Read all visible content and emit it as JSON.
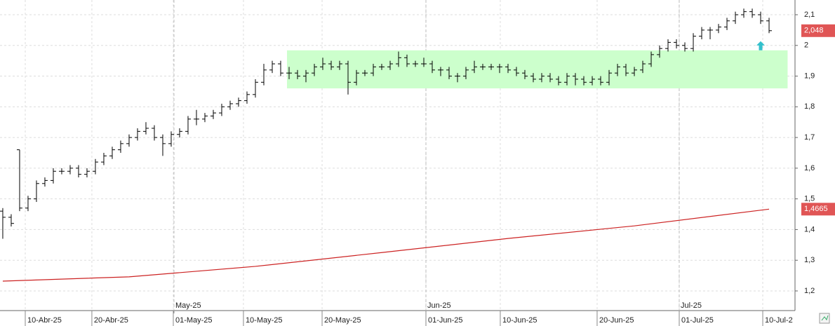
{
  "chart_data": {
    "type": "ohlc",
    "open": [
      1.46,
      1.44,
      1.66,
      1.47,
      1.5,
      1.55,
      1.56,
      1.59,
      1.59,
      1.6,
      1.58,
      1.59,
      1.62,
      1.64,
      1.66,
      1.68,
      1.7,
      1.72,
      1.73,
      1.7,
      1.68,
      1.71,
      1.72,
      1.76,
      1.76,
      1.77,
      1.78,
      1.8,
      1.81,
      1.82,
      1.84,
      1.88,
      1.92,
      1.94,
      1.91,
      1.91,
      1.9,
      1.91,
      1.93,
      1.94,
      1.93,
      1.94,
      1.88,
      1.91,
      1.91,
      1.93,
      1.93,
      1.94,
      1.96,
      1.94,
      1.94,
      1.94,
      1.92,
      1.92,
      1.9,
      1.9,
      1.92,
      1.93,
      1.93,
      1.93,
      1.93,
      1.92,
      1.91,
      1.9,
      1.89,
      1.9,
      1.89,
      1.88,
      1.9,
      1.89,
      1.88,
      1.89,
      1.88,
      1.91,
      1.93,
      1.91,
      1.92,
      1.94,
      1.97,
      1.99,
      2.01,
      2.0,
      1.99,
      2.03,
      2.05,
      2.05,
      2.06,
      2.08,
      2.1,
      2.11,
      2.1,
      2.08
    ],
    "high": [
      1.47,
      1.45,
      1.66,
      1.51,
      1.56,
      1.57,
      1.6,
      1.6,
      1.61,
      1.61,
      1.6,
      1.63,
      1.65,
      1.67,
      1.69,
      1.71,
      1.73,
      1.75,
      1.74,
      1.71,
      1.72,
      1.73,
      1.77,
      1.79,
      1.78,
      1.79,
      1.81,
      1.82,
      1.83,
      1.85,
      1.89,
      1.94,
      1.95,
      1.95,
      1.93,
      1.92,
      1.92,
      1.94,
      1.96,
      1.95,
      1.95,
      1.95,
      1.92,
      1.92,
      1.94,
      1.94,
      1.95,
      1.98,
      1.97,
      1.95,
      1.96,
      1.95,
      1.93,
      1.93,
      1.91,
      1.93,
      1.95,
      1.94,
      1.94,
      1.94,
      1.94,
      1.93,
      1.92,
      1.91,
      1.91,
      1.91,
      1.9,
      1.91,
      1.91,
      1.9,
      1.9,
      1.9,
      1.92,
      1.94,
      1.94,
      1.93,
      1.95,
      1.98,
      2.0,
      2.02,
      2.02,
      2.01,
      2.04,
      2.06,
      2.06,
      2.07,
      2.09,
      2.11,
      2.12,
      2.12,
      2.11,
      2.09
    ],
    "low": [
      1.37,
      1.41,
      1.46,
      1.46,
      1.49,
      1.54,
      1.55,
      1.58,
      1.58,
      1.57,
      1.57,
      1.58,
      1.61,
      1.63,
      1.65,
      1.67,
      1.69,
      1.71,
      1.69,
      1.64,
      1.67,
      1.7,
      1.71,
      1.74,
      1.75,
      1.76,
      1.77,
      1.79,
      1.8,
      1.81,
      1.83,
      1.87,
      1.91,
      1.9,
      1.89,
      1.89,
      1.88,
      1.9,
      1.92,
      1.92,
      1.92,
      1.84,
      1.87,
      1.9,
      1.9,
      1.92,
      1.92,
      1.93,
      1.93,
      1.93,
      1.93,
      1.91,
      1.9,
      1.89,
      1.88,
      1.89,
      1.91,
      1.92,
      1.92,
      1.91,
      1.91,
      1.9,
      1.89,
      1.88,
      1.88,
      1.88,
      1.87,
      1.87,
      1.87,
      1.87,
      1.87,
      1.87,
      1.87,
      1.9,
      1.9,
      1.9,
      1.91,
      1.93,
      1.96,
      1.98,
      1.99,
      1.98,
      1.98,
      2.02,
      2.02,
      2.04,
      2.05,
      2.07,
      2.09,
      2.09,
      2.07,
      2.04
    ],
    "close": [
      1.44,
      1.42,
      1.47,
      1.5,
      1.55,
      1.56,
      1.59,
      1.59,
      1.6,
      1.58,
      1.59,
      1.62,
      1.64,
      1.66,
      1.68,
      1.7,
      1.72,
      1.73,
      1.7,
      1.68,
      1.71,
      1.72,
      1.76,
      1.76,
      1.77,
      1.78,
      1.8,
      1.81,
      1.82,
      1.84,
      1.88,
      1.92,
      1.94,
      1.91,
      1.91,
      1.9,
      1.91,
      1.93,
      1.94,
      1.93,
      1.94,
      1.88,
      1.91,
      1.91,
      1.93,
      1.93,
      1.94,
      1.96,
      1.94,
      1.94,
      1.94,
      1.92,
      1.92,
      1.9,
      1.9,
      1.92,
      1.93,
      1.93,
      1.93,
      1.93,
      1.92,
      1.91,
      1.9,
      1.89,
      1.9,
      1.89,
      1.88,
      1.9,
      1.89,
      1.88,
      1.89,
      1.88,
      1.91,
      1.93,
      1.91,
      1.92,
      1.94,
      1.97,
      1.99,
      2.01,
      2.0,
      1.99,
      2.03,
      2.05,
      2.05,
      2.06,
      2.08,
      2.1,
      2.11,
      2.1,
      2.08,
      2.048
    ],
    "color": "#000000",
    "moving_average": {
      "x": [
        0,
        15,
        30,
        45,
        60,
        75,
        91
      ],
      "values": [
        1.232,
        1.246,
        1.28,
        1.325,
        1.371,
        1.412,
        1.4665
      ],
      "color": "#cc2222"
    },
    "zone": {
      "x": [
        33.75,
        93.2
      ],
      "y": [
        1.86,
        1.984
      ],
      "color": "#ccffcc"
    },
    "signal": {
      "x": 90,
      "y": 2.0,
      "color": "#33c0cc"
    },
    "price_labels": [
      {
        "value": 2.048,
        "label": "2,048"
      },
      {
        "value": 1.4665,
        "label": "1,4665"
      }
    ],
    "price_label_color": "#e05555",
    "xlim": [
      -0.33,
      94.08
    ],
    "ylim": [
      1.136,
      2.148
    ],
    "yticks": [
      {
        "value": 1.2,
        "label": "1,2"
      },
      {
        "value": 1.3,
        "label": "1,3"
      },
      {
        "value": 1.4,
        "label": "1,4"
      },
      {
        "value": 1.5,
        "label": "1,5"
      },
      {
        "value": 1.6,
        "label": "1,6"
      },
      {
        "value": 1.7,
        "label": "1,7"
      },
      {
        "value": 1.8,
        "label": "1,8"
      },
      {
        "value": 1.9,
        "label": "1,9"
      },
      2,
      {
        "value": 2.1,
        "label": "2,1"
      }
    ],
    "xticks": [
      {
        "value": 2.67,
        "label": "10-Abr-25"
      },
      {
        "value": 10.58,
        "label": "20-Abr-25"
      },
      {
        "value": 20.25,
        "label": "01-May-25"
      },
      {
        "value": 28.58,
        "label": "10-May-25"
      },
      {
        "value": 37.92,
        "label": "20-May-25"
      },
      {
        "value": 50.25,
        "label": "01-Jun-25"
      },
      {
        "value": 59.08,
        "label": "10-Jun-25"
      },
      {
        "value": 70.58,
        "label": "20-Jun-25"
      },
      {
        "value": 80.33,
        "label": "01-Jul-25"
      },
      {
        "value": 90.25,
        "label": "10-Jul-2"
      }
    ],
    "month_ticks": [
      {
        "value": 20.33,
        "label": "May-25"
      },
      {
        "value": 50.25,
        "label": "Jun-25"
      },
      {
        "value": 80.33,
        "label": "Jul-25"
      }
    ],
    "grid": true
  }
}
